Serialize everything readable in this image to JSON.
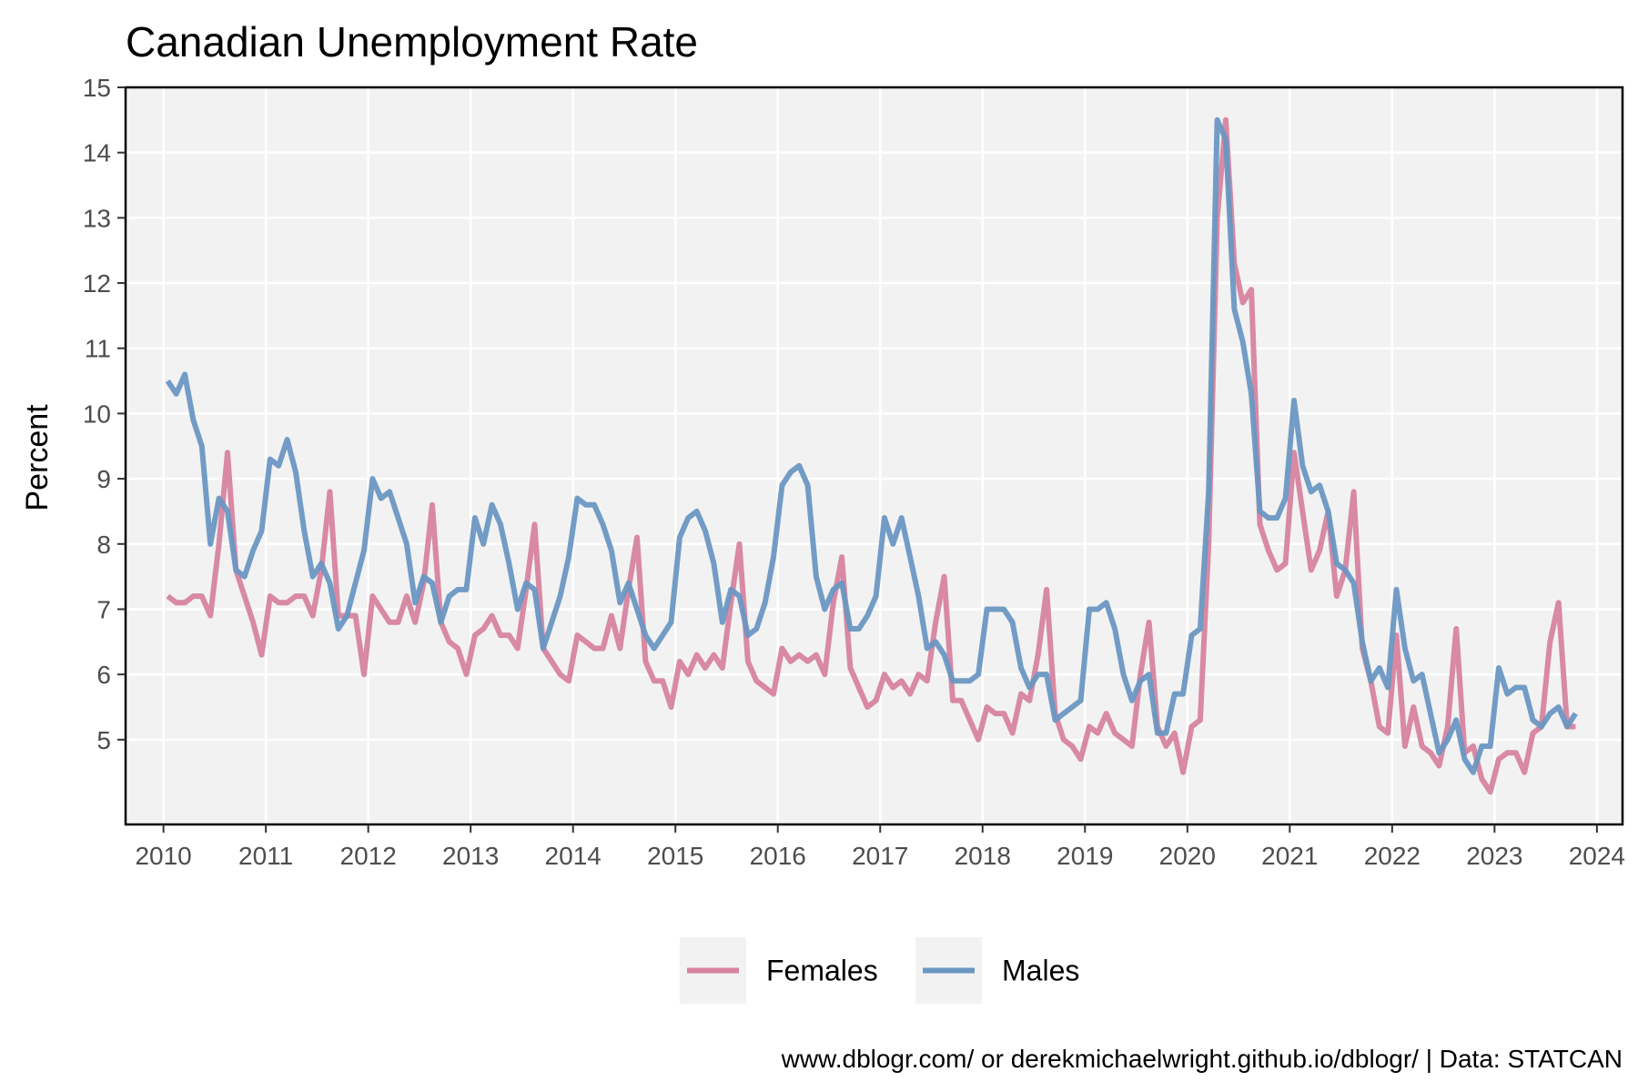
{
  "chart_data": {
    "type": "line",
    "title": "Canadian Unemployment Rate",
    "xlabel": "",
    "ylabel": "Percent",
    "caption": "www.dblogr.com/ or derekmichaelwright.github.io/dblogr/ | Data: STATCAN",
    "xlim": [
      2009.63,
      2024.25
    ],
    "ylim": [
      3.7,
      15.0
    ],
    "x_ticks": [
      "2010",
      "2011",
      "2012",
      "2013",
      "2014",
      "2015",
      "2016",
      "2017",
      "2018",
      "2019",
      "2020",
      "2021",
      "2022",
      "2023",
      "2024"
    ],
    "y_ticks": [
      "5",
      "6",
      "7",
      "8",
      "9",
      "10",
      "11",
      "12",
      "13",
      "14",
      "15"
    ],
    "grid": true,
    "legend_position": "bottom",
    "x_start": "2010-01",
    "x_step": "monthly",
    "series": [
      {
        "name": "Females",
        "color": "#d6839f",
        "values": [
          7.2,
          7.1,
          7.1,
          7.2,
          7.2,
          6.9,
          8.0,
          9.4,
          7.6,
          7.2,
          6.8,
          6.3,
          7.2,
          7.1,
          7.1,
          7.2,
          7.2,
          6.9,
          7.6,
          8.8,
          6.9,
          6.9,
          6.9,
          6.0,
          7.2,
          7.0,
          6.8,
          6.8,
          7.2,
          6.8,
          7.4,
          8.6,
          6.8,
          6.5,
          6.4,
          6.0,
          6.6,
          6.7,
          6.9,
          6.6,
          6.6,
          6.4,
          7.3,
          8.3,
          6.4,
          6.2,
          6.0,
          5.9,
          6.6,
          6.5,
          6.4,
          6.4,
          6.9,
          6.4,
          7.3,
          8.1,
          6.2,
          5.9,
          5.9,
          5.5,
          6.2,
          6.0,
          6.3,
          6.1,
          6.3,
          6.1,
          7.1,
          8.0,
          6.2,
          5.9,
          5.8,
          5.7,
          6.4,
          6.2,
          6.3,
          6.2,
          6.3,
          6.0,
          7.1,
          7.8,
          6.1,
          5.8,
          5.5,
          5.6,
          6.0,
          5.8,
          5.9,
          5.7,
          6.0,
          5.9,
          6.8,
          7.5,
          5.6,
          5.6,
          5.3,
          5.0,
          5.5,
          5.4,
          5.4,
          5.1,
          5.7,
          5.6,
          6.3,
          7.3,
          5.4,
          5.0,
          4.9,
          4.7,
          5.2,
          5.1,
          5.4,
          5.1,
          5.0,
          4.9,
          6.0,
          6.8,
          5.2,
          4.9,
          5.1,
          4.5,
          5.2,
          5.3,
          8.0,
          13.0,
          14.5,
          12.3,
          11.7,
          11.9,
          8.3,
          7.9,
          7.6,
          7.7,
          9.4,
          8.5,
          7.6,
          7.9,
          8.5,
          7.2,
          7.6,
          8.8,
          6.4,
          5.9,
          5.2,
          5.1,
          6.6,
          4.9,
          5.5,
          4.9,
          4.8,
          4.6,
          5.2,
          6.7,
          4.8,
          4.9,
          4.4,
          4.2,
          4.7,
          4.8,
          4.8,
          4.5,
          5.1,
          5.2,
          6.5,
          7.1,
          5.2,
          5.2
        ]
      },
      {
        "name": "Males",
        "color": "#6a97c2",
        "values": [
          10.5,
          10.3,
          10.6,
          9.9,
          9.5,
          8.0,
          8.7,
          8.5,
          7.6,
          7.5,
          7.9,
          8.2,
          9.3,
          9.2,
          9.6,
          9.1,
          8.2,
          7.5,
          7.7,
          7.4,
          6.7,
          6.9,
          7.4,
          7.9,
          9.0,
          8.7,
          8.8,
          8.4,
          8.0,
          7.1,
          7.5,
          7.4,
          6.8,
          7.2,
          7.3,
          7.3,
          8.4,
          8.0,
          8.6,
          8.3,
          7.7,
          7.0,
          7.4,
          7.3,
          6.4,
          6.8,
          7.2,
          7.8,
          8.7,
          8.6,
          8.6,
          8.3,
          7.9,
          7.1,
          7.4,
          7.0,
          6.6,
          6.4,
          6.6,
          6.8,
          8.1,
          8.4,
          8.5,
          8.2,
          7.7,
          6.8,
          7.3,
          7.2,
          6.6,
          6.7,
          7.1,
          7.8,
          8.9,
          9.1,
          9.2,
          8.9,
          7.5,
          7.0,
          7.3,
          7.4,
          6.7,
          6.7,
          6.9,
          7.2,
          8.4,
          8.0,
          8.4,
          7.8,
          7.2,
          6.4,
          6.5,
          6.3,
          5.9,
          5.9,
          5.9,
          6.0,
          7.0,
          7.0,
          7.0,
          6.8,
          6.1,
          5.8,
          6.0,
          6.0,
          5.3,
          5.4,
          5.5,
          5.6,
          7.0,
          7.0,
          7.1,
          6.7,
          6.0,
          5.6,
          5.9,
          6.0,
          5.1,
          5.1,
          5.7,
          5.7,
          6.6,
          6.7,
          8.8,
          14.5,
          14.2,
          11.6,
          11.1,
          10.3,
          8.5,
          8.4,
          8.4,
          8.7,
          10.2,
          9.2,
          8.8,
          8.9,
          8.5,
          7.7,
          7.6,
          7.4,
          6.5,
          5.9,
          6.1,
          5.8,
          7.3,
          6.4,
          5.9,
          6.0,
          5.4,
          4.8,
          5.0,
          5.3,
          4.7,
          4.5,
          4.9,
          4.9,
          6.1,
          5.7,
          5.8,
          5.8,
          5.3,
          5.2,
          5.4,
          5.5,
          5.2,
          5.4
        ]
      }
    ]
  }
}
